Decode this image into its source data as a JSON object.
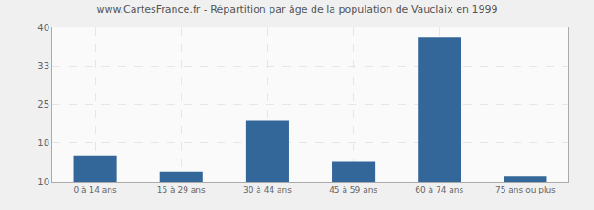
{
  "chart_data": {
    "type": "bar",
    "title": "www.CartesFrance.fr - Répartition par âge de la population de Vauclaix en 1999",
    "categories": [
      "0 à 14 ans",
      "15 à 29 ans",
      "30 à 44 ans",
      "45 à 59 ans",
      "60 à 74 ans",
      "75 ans ou plus"
    ],
    "values": [
      15,
      12,
      22,
      14,
      38,
      11
    ],
    "color": "#336699",
    "ylim": [
      10,
      40
    ],
    "yticks": [
      10,
      {
        "value": 17.5,
        "label": "18"
      },
      25,
      {
        "value": 32.5,
        "label": "33"
      },
      40
    ],
    "grid": true
  }
}
